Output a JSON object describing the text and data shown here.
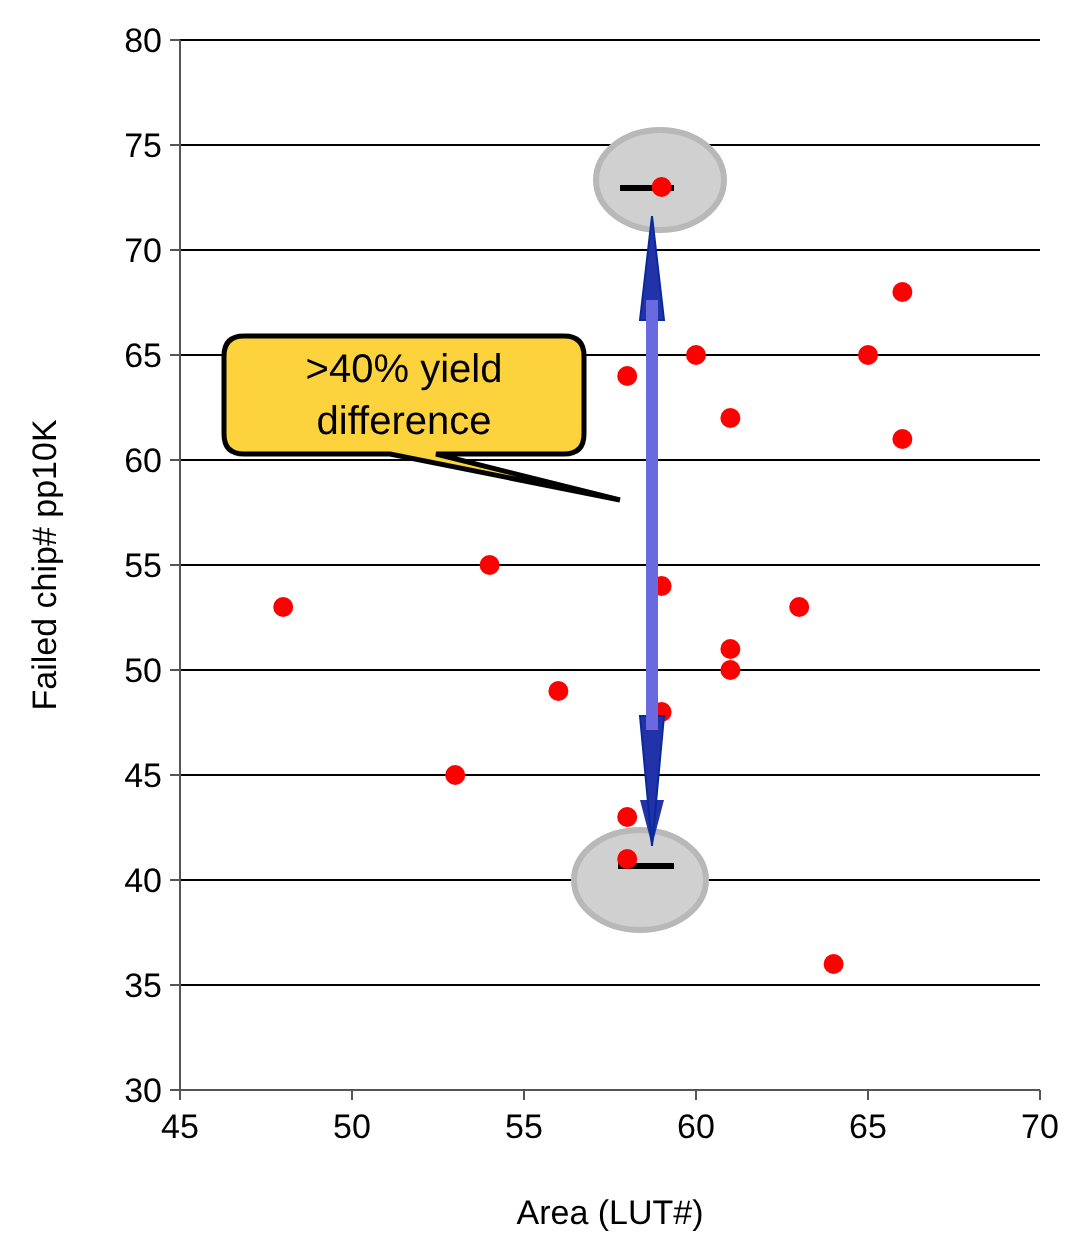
{
  "chart_data": {
    "type": "scatter",
    "xlabel": "Area (LUT#)",
    "ylabel": "Failed chip# pp10K",
    "x": [
      48,
      53,
      54,
      56,
      58,
      58,
      58,
      59,
      59,
      59,
      60,
      61,
      61,
      61,
      63,
      64,
      65,
      66,
      66
    ],
    "values": [
      53,
      45,
      55,
      49,
      64,
      43,
      41,
      73,
      54,
      48,
      65,
      62,
      51,
      50,
      53,
      36,
      65,
      68,
      61
    ],
    "color": "#ff0000",
    "marker": "circle",
    "xlim": [
      45,
      70
    ],
    "xticks": [
      45,
      50,
      55,
      60,
      65,
      70
    ],
    "ylim": [
      30,
      80
    ],
    "yticks": [
      30,
      35,
      40,
      45,
      50,
      55,
      60,
      65,
      70,
      75,
      80
    ],
    "grid": "y",
    "annotations": [
      ">40% yield difference"
    ]
  }
}
